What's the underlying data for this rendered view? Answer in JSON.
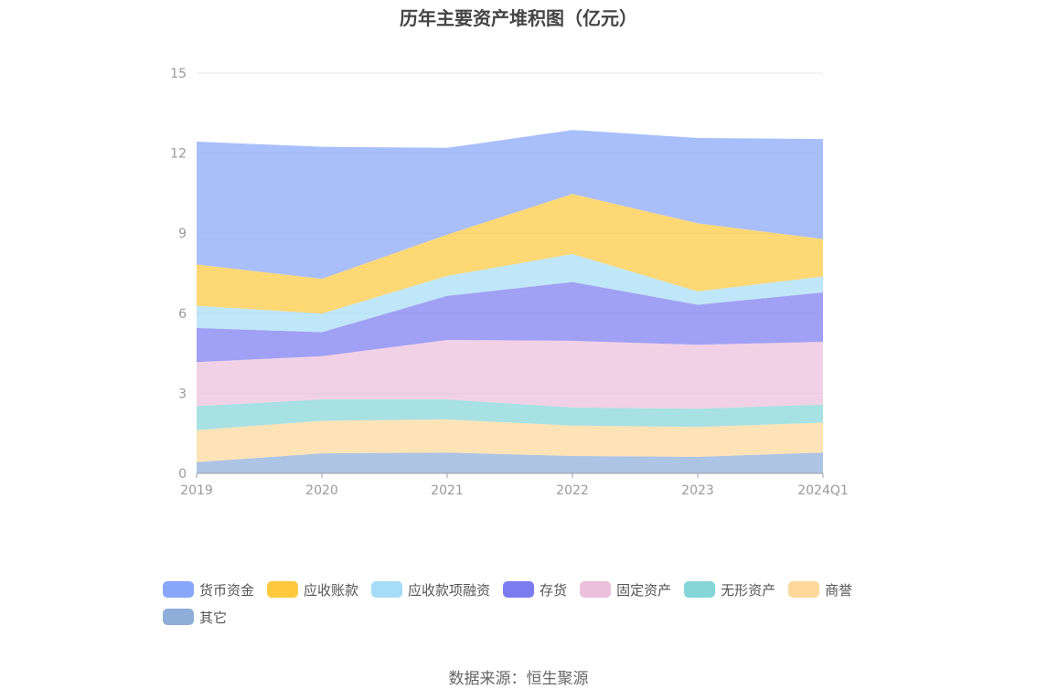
{
  "chart_data": {
    "type": "area",
    "title": "历年主要资产堆积图（亿元）",
    "categories": [
      "2019",
      "2020",
      "2021",
      "2022",
      "2023",
      "2024Q1"
    ],
    "ylim": [
      0,
      15
    ],
    "yticks": [
      0,
      3,
      6,
      9,
      12,
      15
    ],
    "grid": true,
    "legend_position": "bottom",
    "stacked": true,
    "series": [
      {
        "name": "其它",
        "color": "#8eadd9",
        "values": [
          0.42,
          0.75,
          0.78,
          0.65,
          0.62,
          0.78
        ]
      },
      {
        "name": "商誉",
        "color": "#fdd89a",
        "values": [
          1.2,
          1.22,
          1.24,
          1.14,
          1.12,
          1.12
        ]
      },
      {
        "name": "无形资产",
        "color": "#86d6d8",
        "values": [
          0.9,
          0.8,
          0.75,
          0.68,
          0.68,
          0.68
        ]
      },
      {
        "name": "固定资产",
        "color": "#ecbfdd",
        "values": [
          1.65,
          1.62,
          2.23,
          2.5,
          2.4,
          2.35
        ]
      },
      {
        "name": "存货",
        "color": "#7b7cf0",
        "values": [
          1.28,
          0.9,
          1.65,
          2.2,
          1.5,
          1.85
        ]
      },
      {
        "name": "应收款项融资",
        "color": "#a6dcf7",
        "values": [
          0.83,
          0.7,
          0.75,
          1.05,
          0.5,
          0.6
        ]
      },
      {
        "name": "应收账款",
        "color": "#fec93f",
        "values": [
          1.55,
          1.3,
          1.55,
          2.25,
          2.55,
          1.4
        ]
      },
      {
        "name": "货币资金",
        "color": "#88a6fb",
        "values": [
          4.6,
          4.95,
          3.25,
          2.4,
          3.2,
          3.75
        ]
      }
    ]
  },
  "legend_order": [
    "货币资金",
    "应收账款",
    "应收款项融资",
    "存货",
    "固定资产",
    "无形资产",
    "商誉",
    "其它"
  ],
  "source_text": "数据来源：恒生聚源"
}
